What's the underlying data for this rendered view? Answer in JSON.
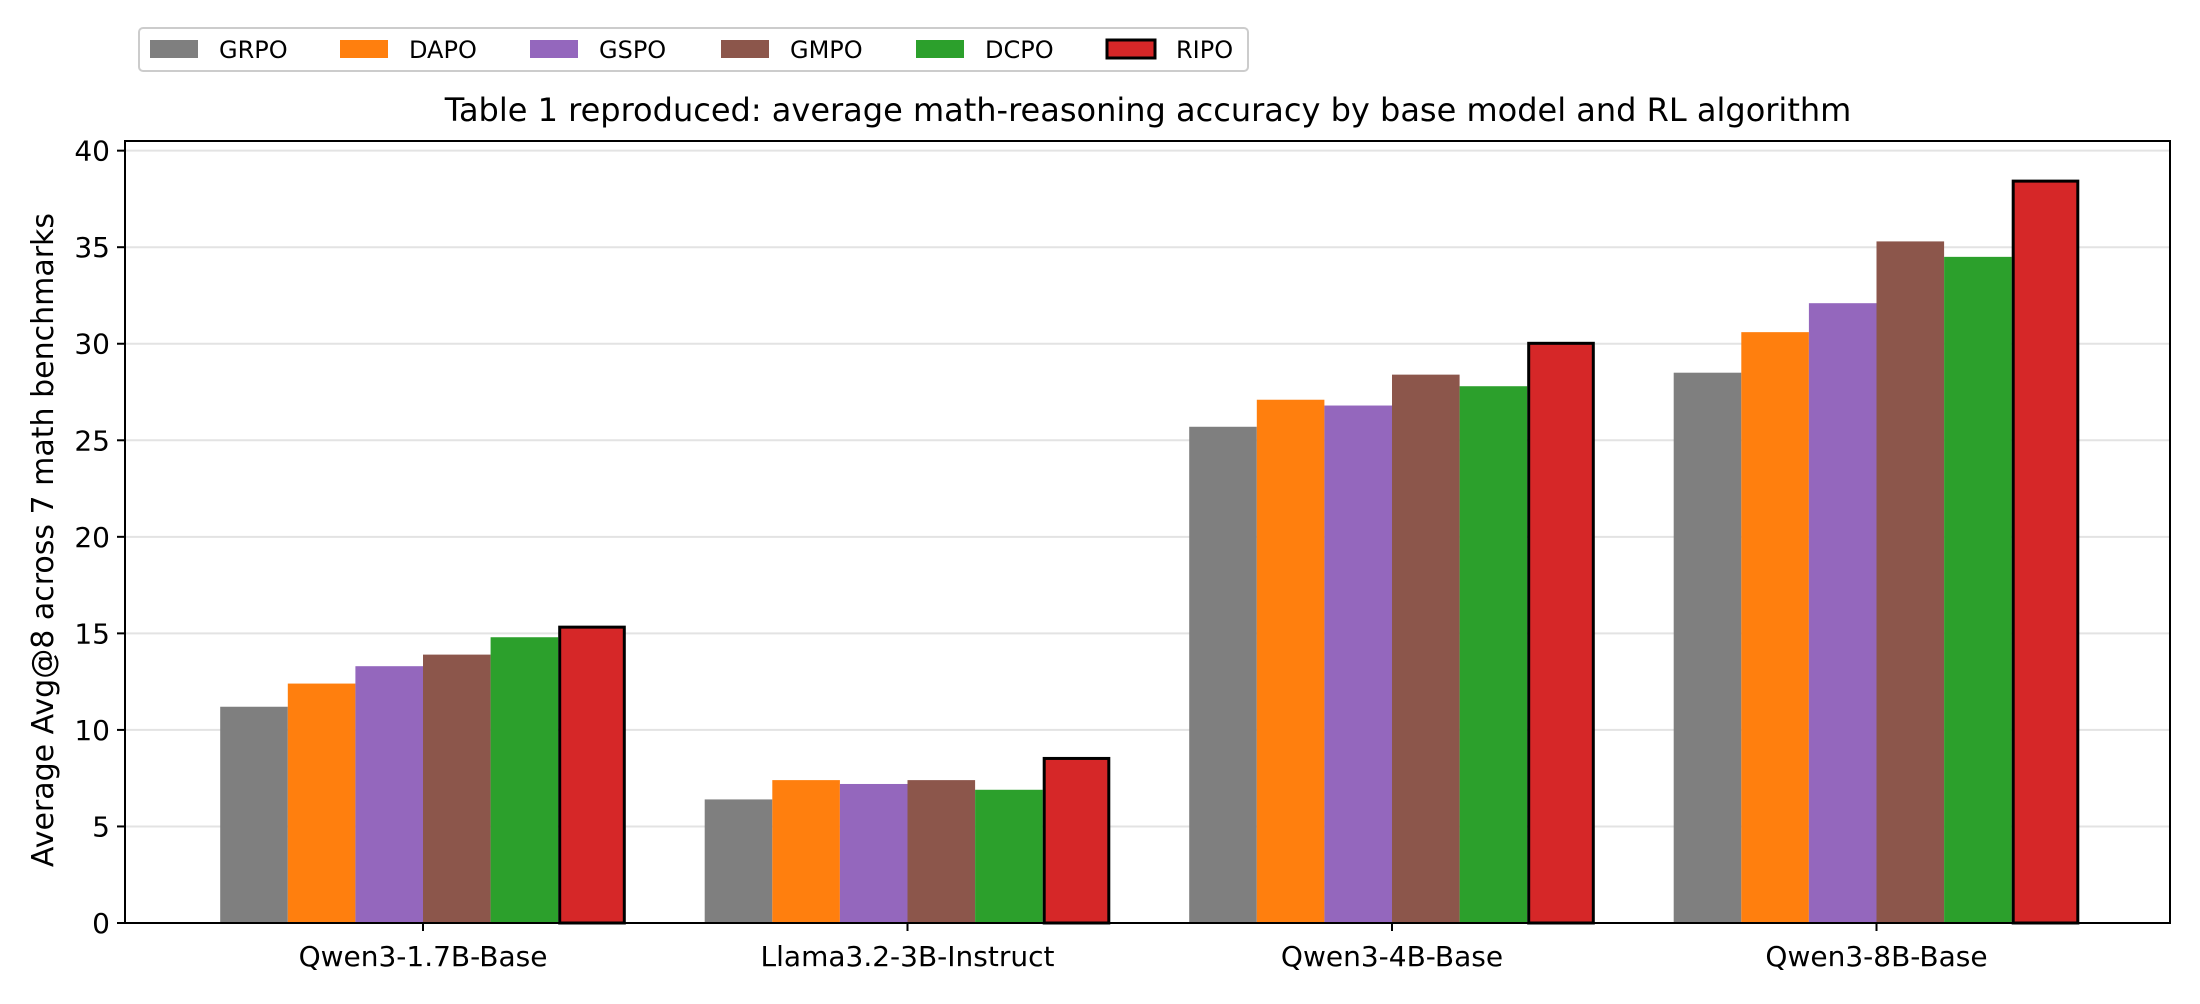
{
  "chart_data": {
    "type": "bar",
    "title": "Table 1 reproduced: average math-reasoning accuracy by base model and RL algorithm",
    "xlabel": "",
    "ylabel": "Average Avg@8 across 7 math benchmarks",
    "categories": [
      "Qwen3-1.7B-Base",
      "Llama3.2-3B-Instruct",
      "Qwen3-4B-Base",
      "Qwen3-8B-Base"
    ],
    "series": [
      {
        "name": "GRPO",
        "color": "#7f7f7f",
        "values": [
          11.2,
          6.4,
          25.7,
          28.5
        ]
      },
      {
        "name": "DAPO",
        "color": "#ff7f0e",
        "values": [
          12.4,
          7.4,
          27.1,
          30.6
        ]
      },
      {
        "name": "GSPO",
        "color": "#9467bd",
        "values": [
          13.3,
          7.2,
          26.8,
          32.1
        ]
      },
      {
        "name": "GMPO",
        "color": "#8c564b",
        "values": [
          13.9,
          7.4,
          28.4,
          35.3
        ]
      },
      {
        "name": "DCPO",
        "color": "#2ca02c",
        "values": [
          14.8,
          6.9,
          27.8,
          34.5
        ]
      },
      {
        "name": "RIPO",
        "color": "#d62728",
        "values": [
          15.4,
          8.6,
          30.1,
          38.5
        ],
        "highlighted": true
      }
    ],
    "ylim": [
      0,
      40.5
    ],
    "yticks": [
      "0",
      "5",
      "10",
      "15",
      "20",
      "25",
      "30",
      "35",
      "40"
    ],
    "grid": "horizontal",
    "legend_position": "top-left, above plot"
  }
}
